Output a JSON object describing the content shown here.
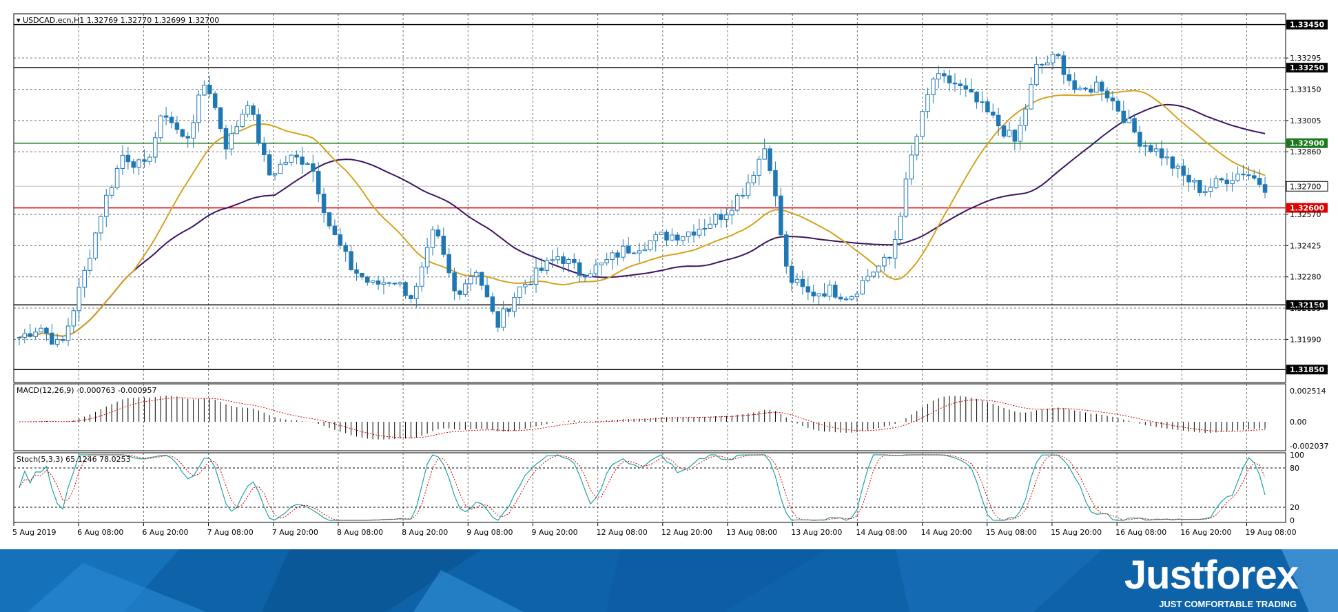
{
  "chart_data": {
    "type": "candlestick",
    "symbol_line": "USDCAD.ecn,H1  1.32769 1.32770 1.32699 1.32700",
    "price_axis": {
      "ylim": [
        1.3179,
        1.335
      ],
      "ticks": [
        "1.33295",
        "1.33150",
        "1.33005",
        "1.32860",
        "1.32570",
        "1.32425",
        "1.32280",
        "1.32135",
        "1.31990"
      ]
    },
    "horizontal_levels": [
      {
        "value": 1.3345,
        "label": "1.33450",
        "color": "#000000"
      },
      {
        "value": 1.3325,
        "label": "1.33250",
        "color": "#000000"
      },
      {
        "value": 1.329,
        "label": "1.32900",
        "color": "#1a7a1a"
      },
      {
        "value": 1.326,
        "label": "1.32600",
        "color": "#e00000"
      },
      {
        "value": 1.3215,
        "label": "1.32150",
        "color": "#000000"
      },
      {
        "value": 1.3185,
        "label": "1.31850",
        "color": "#000000"
      }
    ],
    "current_price": {
      "value": 1.327,
      "label": "1.32700"
    },
    "time_labels": [
      "5 Aug 2019",
      "6 Aug 08:00",
      "6 Aug 20:00",
      "7 Aug 08:00",
      "7 Aug 20:00",
      "8 Aug 08:00",
      "8 Aug 20:00",
      "9 Aug 08:00",
      "9 Aug 20:00",
      "12 Aug 08:00",
      "12 Aug 20:00",
      "13 Aug 08:00",
      "13 Aug 20:00",
      "14 Aug 08:00",
      "14 Aug 20:00",
      "15 Aug 08:00",
      "15 Aug 20:00",
      "16 Aug 08:00",
      "16 Aug 20:00",
      "19 Aug 08:00"
    ],
    "close_anchors": [
      1.32,
      1.3205,
      1.3195,
      1.3225,
      1.326,
      1.3285,
      1.3278,
      1.3305,
      1.329,
      1.332,
      1.3288,
      1.331,
      1.3275,
      1.3283,
      1.3282,
      1.325,
      1.3232,
      1.3224,
      1.3227,
      1.3218,
      1.325,
      1.322,
      1.3232,
      1.3205,
      1.3222,
      1.323,
      1.3238,
      1.323,
      1.3233,
      1.324,
      1.3243,
      1.3247,
      1.3248,
      1.3252,
      1.3258,
      1.327,
      1.329,
      1.3228,
      1.322,
      1.3222,
      1.3219,
      1.323,
      1.3237,
      1.3285,
      1.332,
      1.3318,
      1.331,
      1.33,
      1.329,
      1.3325,
      1.333,
      1.3312,
      1.3318,
      1.3305,
      1.3291,
      1.3285,
      1.3275,
      1.3268,
      1.3273,
      1.3277,
      1.327
    ],
    "indicators": {
      "ma_slow": {
        "color": "#3a1366"
      },
      "ma_fast": {
        "color": "#d6a21c"
      }
    },
    "macd": {
      "label": "MACD(12,26,9) -0.000763 -0.000957",
      "ticks": [
        "0.002514",
        "0.00",
        "-0.002037"
      ]
    },
    "stoch": {
      "label": "Stoch(5,3,3) 65.1246 78.0253",
      "ticks": [
        "100",
        "80",
        "20",
        "0"
      ]
    }
  },
  "branding": {
    "logo": "Justforex",
    "tagline": "JUST COMFORTABLE TRADING",
    "band_color": "#0d62a8"
  }
}
